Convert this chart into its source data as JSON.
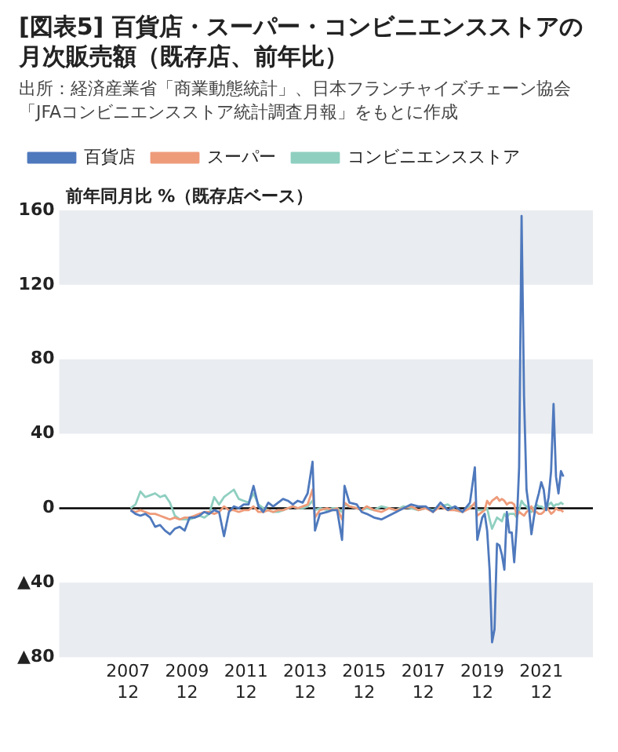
{
  "chart_data": {
    "type": "line",
    "title": "[図表5] 百貨店・スーパー・コンビニエンスストアの月次販売額（既存店、前年比）",
    "annotations": [
      "出所：経済産業省「商業動態統計」、日本フランチャイズチェーン協会「JFAコンビニエンスストア統計調査月報」をもとに作成"
    ],
    "ylabel": "前年同月比 %（既存店ベース）",
    "x": [
      "2008-01",
      "2008-03",
      "2008-05",
      "2008-07",
      "2008-09",
      "2008-11",
      "2009-01",
      "2009-03",
      "2009-05",
      "2009-07",
      "2009-09",
      "2009-11",
      "2010-01",
      "2010-03",
      "2010-05",
      "2010-07",
      "2010-09",
      "2010-11",
      "2011-01",
      "2011-03",
      "2011-05",
      "2011-07",
      "2011-09",
      "2011-11",
      "2012-01",
      "2012-03",
      "2012-05",
      "2012-07",
      "2012-09",
      "2012-11",
      "2013-01",
      "2013-03",
      "2013-05",
      "2013-07",
      "2013-09",
      "2013-11",
      "2014-01",
      "2014-03",
      "2014-04",
      "2014-06",
      "2014-09",
      "2014-11",
      "2015-01",
      "2015-03",
      "2015-04",
      "2015-06",
      "2015-09",
      "2015-11",
      "2016-01",
      "2016-04",
      "2016-07",
      "2016-10",
      "2017-01",
      "2017-04",
      "2017-07",
      "2017-10",
      "2018-01",
      "2018-04",
      "2018-07",
      "2018-10",
      "2019-01",
      "2019-04",
      "2019-07",
      "2019-09",
      "2019-10",
      "2019-12",
      "2020-01",
      "2020-02",
      "2020-03",
      "2020-04",
      "2020-05",
      "2020-06",
      "2020-07",
      "2020-08",
      "2020-09",
      "2020-10",
      "2020-11",
      "2020-12",
      "2021-01",
      "2021-02",
      "2021-03",
      "2021-04",
      "2021-05",
      "2021-06",
      "2021-07",
      "2021-08",
      "2021-09",
      "2021-10",
      "2021-11",
      "2021-12",
      "2022-01",
      "2022-02",
      "2022-03",
      "2022-04",
      "2022-05",
      "2022-06",
      "2022-07",
      "2022-08",
      "2022-09"
    ],
    "series": [
      {
        "name": "百貨店",
        "color": "#4f79bd",
        "values": [
          -1,
          -3,
          -4,
          -3,
          -5,
          -10,
          -9,
          -12,
          -14,
          -11,
          -10,
          -12,
          -5,
          -5,
          -4,
          -2,
          -3,
          -1,
          -2,
          -15,
          -2,
          1,
          0,
          2,
          2,
          12,
          1,
          -2,
          3,
          1,
          3,
          5,
          4,
          2,
          4,
          3,
          8,
          25,
          -12,
          -3,
          -2,
          -1,
          -1,
          -17,
          12,
          3,
          2,
          -2,
          -3,
          -5,
          -6,
          -4,
          -2,
          0,
          2,
          1,
          1,
          -2,
          3,
          -1,
          1,
          -2,
          3,
          22,
          -17,
          -5,
          -3,
          -12,
          -33,
          -72,
          -65,
          -19,
          -20,
          -25,
          -33,
          -2,
          -13,
          -13,
          -29,
          -10,
          22,
          157,
          60,
          10,
          0,
          -14,
          -5,
          3,
          8,
          14,
          10,
          -1,
          6,
          20,
          56,
          17,
          8,
          20,
          17
        ]
      },
      {
        "name": "スーパー",
        "color": "#ee9b7a",
        "values": [
          -1,
          -2,
          -1,
          -2,
          -3,
          -3,
          -4,
          -5,
          -6,
          -5,
          -6,
          -5,
          -5,
          -4,
          -3,
          -2,
          -2,
          -3,
          -2,
          1,
          -1,
          -1,
          -2,
          -1,
          -1,
          1,
          -2,
          -2,
          -1,
          -2,
          -1,
          -1,
          0,
          1,
          0,
          1,
          2,
          10,
          -5,
          -1,
          0,
          -1,
          0,
          -6,
          3,
          1,
          0,
          -1,
          1,
          -1,
          -2,
          0,
          -1,
          0,
          1,
          -1,
          0,
          -2,
          1,
          -1,
          -1,
          -2,
          0,
          3,
          -4,
          -2,
          -1,
          4,
          2,
          4,
          5,
          6,
          4,
          5,
          4,
          2,
          3,
          3,
          2,
          -4,
          -2,
          -3,
          -4,
          -2,
          -1,
          1,
          -2,
          -2,
          -3,
          -3,
          -2,
          1,
          -1,
          -3,
          -2,
          0,
          -1,
          -1,
          -2
        ]
      },
      {
        "name": "コンビニエンスストア",
        "color": "#8fcfc0",
        "values": [
          0,
          2,
          9,
          6,
          7,
          8,
          6,
          7,
          3,
          -4,
          -6,
          -6,
          -6,
          -5,
          -4,
          -5,
          -3,
          6,
          2,
          6,
          8,
          10,
          5,
          4,
          3,
          8,
          2,
          0,
          -1,
          -2,
          -2,
          -1,
          0,
          1,
          0,
          0,
          1,
          4,
          -1,
          0,
          -1,
          0,
          0,
          -2,
          2,
          1,
          0,
          -1,
          0,
          -1,
          1,
          0,
          -1,
          1,
          0,
          -1,
          0,
          -1,
          1,
          2,
          -1,
          -2,
          1,
          2,
          -1,
          -1,
          -1,
          0,
          -6,
          -11,
          -8,
          -5,
          -6,
          -7,
          -3,
          -5,
          -3,
          -3,
          -3,
          -5,
          -1,
          4,
          2,
          1,
          -1,
          -2,
          0,
          2,
          1,
          1,
          0,
          -1,
          2,
          3,
          1,
          2,
          2,
          3,
          2
        ]
      }
    ],
    "xlim": [
      "2005-08",
      "2023-09"
    ],
    "xticks": [
      {
        "value": "2007-12",
        "label": "2007\n12"
      },
      {
        "value": "2009-12",
        "label": "2009\n12"
      },
      {
        "value": "2011-12",
        "label": "2011\n12"
      },
      {
        "value": "2013-12",
        "label": "2013\n12"
      },
      {
        "value": "2015-12",
        "label": "2015\n12"
      },
      {
        "value": "2017-12",
        "label": "2017\n12"
      },
      {
        "value": "2019-12",
        "label": "2019\n12"
      },
      {
        "value": "2021-12",
        "label": "2021\n12"
      }
    ],
    "ylim": [
      -80,
      160
    ],
    "yticks": [
      {
        "value": -80,
        "label": "▲80"
      },
      {
        "value": -40,
        "label": "▲40"
      },
      0,
      40,
      80,
      120,
      160
    ],
    "bands": [
      {
        "axis": "y",
        "from": 120,
        "to": 160,
        "color": "#e9ecf0"
      },
      {
        "axis": "y",
        "from": 40,
        "to": 80,
        "color": "#e9ecf0"
      },
      {
        "axis": "y",
        "from": -80,
        "to": -40,
        "color": "#e9ecf0"
      }
    ],
    "ref_lines": [
      {
        "axis": "y",
        "value": 0,
        "color": "#000000"
      }
    ],
    "grid": false,
    "legend": "top",
    "marker": "none",
    "line_style": "solid"
  }
}
